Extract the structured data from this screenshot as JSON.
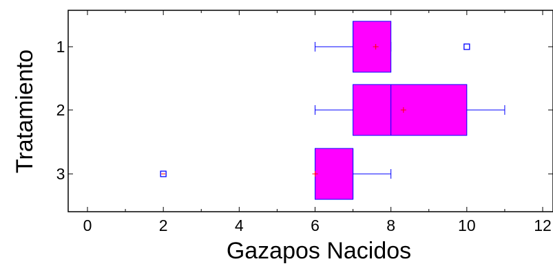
{
  "chart_data": {
    "type": "boxplot",
    "orientation": "horizontal",
    "xlabel": "Gazapos Nacidos",
    "ylabel": "Tratamiento",
    "xlim": [
      0,
      12
    ],
    "xticks": [
      "0",
      "2",
      "4",
      "6",
      "8",
      "10",
      "12"
    ],
    "xtick_values": [
      0,
      2,
      4,
      6,
      8,
      10,
      12
    ],
    "minor_tick_step": 1,
    "categories": [
      "1",
      "2",
      "3"
    ],
    "grid": false,
    "colors": {
      "box_fill": "#ff00ff",
      "box_edge": "#0000ff",
      "whisker": "#0000ff",
      "mean_marker": "#ff0000",
      "outlier": "#0000ff"
    },
    "boxes": [
      {
        "category": "1",
        "whisker_low": 6,
        "q1": 7,
        "median": 7,
        "q3": 8,
        "whisker_high": 8,
        "mean": 7.6,
        "outliers": [
          10
        ]
      },
      {
        "category": "2",
        "whisker_low": 6,
        "q1": 7,
        "median": 8,
        "q3": 10,
        "whisker_high": 11,
        "mean": 8.33,
        "outliers": []
      },
      {
        "category": "3",
        "whisker_low": 6,
        "q1": 6,
        "median": 7,
        "q3": 7,
        "whisker_high": 8,
        "mean": 6,
        "outliers": [
          2
        ]
      }
    ]
  }
}
